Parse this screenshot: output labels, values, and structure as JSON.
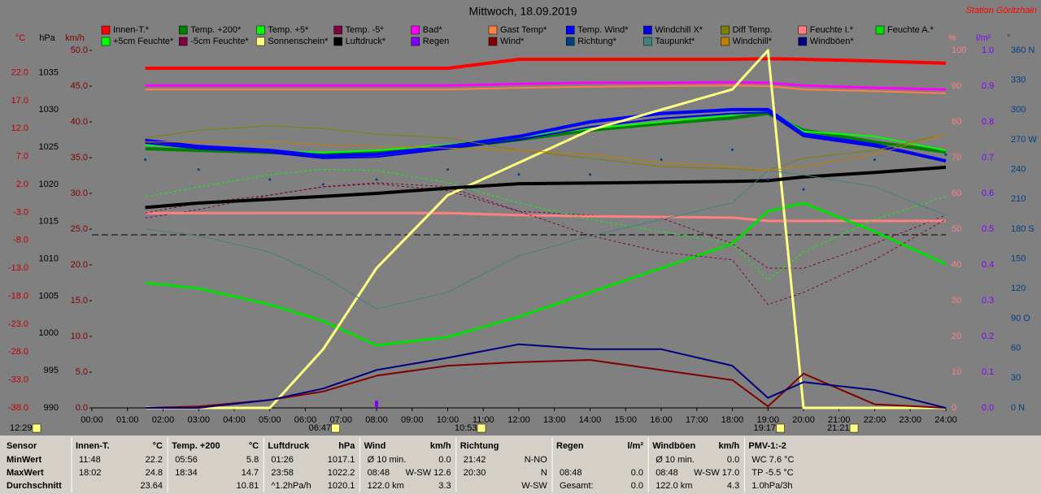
{
  "chart_data": {
    "type": "line",
    "title": "Mittwoch, 18.09.2019",
    "station": "Station Göritzhain",
    "x": [
      1.5,
      3,
      5,
      6.5,
      8,
      10,
      12,
      14,
      16,
      18,
      19,
      20,
      22,
      24
    ],
    "xlim": [
      0,
      24
    ],
    "xticks": [
      {
        "value": 0,
        "label": "00:00"
      },
      {
        "value": 1,
        "label": "01:00"
      },
      {
        "value": 2,
        "label": "02:00"
      },
      {
        "value": 3,
        "label": "03:00"
      },
      {
        "value": 4,
        "label": "04:00"
      },
      {
        "value": 5,
        "label": "05:00"
      },
      {
        "value": 6,
        "label": "06:00"
      },
      {
        "value": 7,
        "label": "07:00"
      },
      {
        "value": 8,
        "label": "08:00"
      },
      {
        "value": 9,
        "label": "09:00"
      },
      {
        "value": 10,
        "label": "10:00"
      },
      {
        "value": 11,
        "label": "11:00"
      },
      {
        "value": 12,
        "label": "12:00"
      },
      {
        "value": 13,
        "label": "13:00"
      },
      {
        "value": 14,
        "label": "14:00"
      },
      {
        "value": 15,
        "label": "15:00"
      },
      {
        "value": 16,
        "label": "16:00"
      },
      {
        "value": 17,
        "label": "17:00"
      },
      {
        "value": 18,
        "label": "18:00"
      },
      {
        "value": 19,
        "label": "19:00"
      },
      {
        "value": 20,
        "label": "20:00"
      },
      {
        "value": 21,
        "label": "21:00"
      },
      {
        "value": 22,
        "label": "22:00"
      },
      {
        "value": 23,
        "label": "23:00"
      },
      {
        "value": 24,
        "label": "24:00"
      }
    ],
    "ylabel": "km/h",
    "ylim": [
      0,
      50
    ],
    "yticks": [
      {
        "value": 0,
        "label": "0.0"
      },
      {
        "value": 5,
        "label": "5.0"
      },
      {
        "value": 10,
        "label": "10.0"
      },
      {
        "value": 15,
        "label": "15.0"
      },
      {
        "value": 20,
        "label": "20.0"
      },
      {
        "value": 25,
        "label": "25.0"
      },
      {
        "value": 30,
        "label": "30.0"
      },
      {
        "value": 35,
        "label": "35.0"
      },
      {
        "value": 40,
        "label": "40.0"
      },
      {
        "value": 45,
        "label": "45.0"
      },
      {
        "value": 50,
        "label": "50.0"
      }
    ],
    "y2label": "°C",
    "y2lim": [
      -38,
      26
    ],
    "y2ticks": [
      {
        "value": 22,
        "label": "22.0"
      },
      {
        "value": 17,
        "label": "17.0"
      },
      {
        "value": 12,
        "label": "12.0"
      },
      {
        "value": 7,
        "label": "7.0"
      },
      {
        "value": 2,
        "label": "2.0"
      },
      {
        "value": -3,
        "label": "-3.0"
      },
      {
        "value": -8,
        "label": "-8.0"
      },
      {
        "value": -13,
        "label": "-13.0"
      },
      {
        "value": -18,
        "label": "-18.0"
      },
      {
        "value": -23,
        "label": "-23.0"
      },
      {
        "value": -28,
        "label": "-28.0"
      },
      {
        "value": -33,
        "label": "-33.0"
      },
      {
        "value": -38,
        "label": "-38.0"
      }
    ],
    "y3label": "hPa",
    "y3lim": [
      990,
      1038
    ],
    "y3ticks": [
      1035,
      1030,
      1025,
      1020,
      1015,
      1010,
      1005,
      1000,
      995,
      990
    ],
    "y4label": "%",
    "y4lim": [
      0,
      100
    ],
    "y4ticks": [
      100,
      90,
      80,
      70,
      60,
      50,
      40,
      30,
      20,
      10,
      0
    ],
    "y5label": "l/m²",
    "y5lim": [
      0,
      1
    ],
    "y5ticks": [
      {
        "value": 1,
        "label": "1.0"
      },
      0.9,
      0.8,
      0.7,
      0.6,
      0.5,
      0.4,
      0.3,
      0.2,
      0.1,
      {
        "value": 0,
        "label": "0.0"
      }
    ],
    "y6label": "°",
    "y6lim": [
      0,
      360
    ],
    "y6ticks": [
      {
        "value": 360,
        "label": "360 N"
      },
      330,
      300,
      {
        "value": 270,
        "label": "270 W"
      },
      240,
      210,
      {
        "value": 180,
        "label": "180 S"
      },
      150,
      120,
      {
        "value": 90,
        "label": "90 O"
      },
      60,
      30,
      {
        "value": 0,
        "label": "0 N"
      }
    ],
    "axis_colors": {
      "y": "#800000",
      "y2": "#c00000",
      "y3": "#000000",
      "y4": "#ff8080",
      "y5": "#8000ff",
      "y6": "#004080"
    },
    "series": [
      {
        "name": "Innen-T.*",
        "color": "#ff0000",
        "axis": "y2",
        "width": 4,
        "values": [
          22.8,
          22.8,
          22.8,
          22.8,
          22.8,
          22.8,
          24.4,
          24.4,
          24.4,
          24.4,
          24.5,
          24.4,
          24.1,
          23.7
        ]
      },
      {
        "name": "Temp. +200*",
        "color": "#008000",
        "axis": "y2",
        "width": 4,
        "values": [
          8.4,
          8.1,
          7.7,
          7.4,
          7.7,
          8.5,
          10.0,
          11.7,
          12.9,
          13.9,
          14.7,
          11.7,
          9.6,
          7.8
        ]
      },
      {
        "name": "Temp. +5*",
        "color": "#00ff00",
        "axis": "y2",
        "width": 2,
        "values": [
          9.1,
          8.5,
          8.0,
          7.7,
          8.1,
          9.1,
          10.6,
          12.0,
          13.2,
          14.4,
          15.4,
          11.5,
          10.6,
          8.1
        ]
      },
      {
        "name": "Temp. -5*",
        "color": "#800040",
        "axis": "y2",
        "width": 1,
        "dash": true,
        "values": [
          -4.0,
          -2.5,
          0.1,
          1.6,
          2.3,
          1.6,
          -2.8,
          -3.5,
          -4.0,
          -8.6,
          -13.0,
          -13.0,
          -8.6,
          -3.5
        ]
      },
      {
        "name": "Bad*",
        "color": "#ff00ff",
        "axis": "y2",
        "width": 3,
        "values": [
          19.7,
          19.7,
          19.7,
          19.7,
          19.7,
          19.7,
          20.0,
          20.2,
          20.2,
          20.3,
          20.2,
          19.7,
          19.3,
          19.0
        ]
      },
      {
        "name": "Gast Temp*",
        "color": "#ff8040",
        "axis": "y2",
        "width": 2,
        "values": [
          19.0,
          19.0,
          19.0,
          19.0,
          19.0,
          19.0,
          19.3,
          19.5,
          19.6,
          19.7,
          19.6,
          19.0,
          18.7,
          18.3
        ]
      },
      {
        "name": "Temp. Wind*",
        "color": "#0000ff",
        "axis": "y2",
        "width": 4,
        "values": [
          9.9,
          8.8,
          8.1,
          7.1,
          7.4,
          8.8,
          10.6,
          13.2,
          14.7,
          15.4,
          15.4,
          11.0,
          9.1,
          6.2
        ]
      },
      {
        "name": "Windchill X*",
        "color": "#0000e0",
        "axis": "y2",
        "width": 2,
        "values": [
          9.4,
          8.4,
          7.7,
          6.7,
          6.9,
          8.4,
          10.0,
          12.3,
          13.8,
          14.7,
          14.9,
          10.6,
          8.8,
          6.2
        ]
      },
      {
        "name": "Diff Temp.",
        "color": "#808000",
        "axis": "y2",
        "width": 1,
        "values": [
          10.3,
          11.7,
          12.5,
          12.0,
          11.0,
          10.3,
          8.1,
          6.7,
          5.2,
          4.8,
          4.5,
          6.7,
          8.1,
          11.0
        ]
      },
      {
        "name": "Feuchte I.*",
        "color": "#ff8080",
        "axis": "y4",
        "width": 3,
        "values": [
          54.5,
          54.5,
          54.5,
          54.5,
          54.5,
          54.5,
          53.9,
          53.6,
          53.4,
          53.2,
          52.3,
          52.3,
          52.3,
          52.3
        ]
      },
      {
        "name": "Feuchte A.*",
        "color": "#00e000",
        "axis": "y4",
        "width": 3,
        "values": [
          35.0,
          33.4,
          28.9,
          24.3,
          17.5,
          19.8,
          25.5,
          32.3,
          39.1,
          45.9,
          55.0,
          57.3,
          49.3,
          40.2
        ]
      },
      {
        "name": "+5cm Feuchte*",
        "color": "#00ff00",
        "axis": "y4",
        "width": 1,
        "dash": true,
        "values": [
          59.1,
          61.8,
          65.2,
          66.8,
          66.4,
          63.0,
          57.3,
          52.7,
          49.3,
          45.9,
          35.7,
          43.6,
          52.7,
          59.1
        ]
      },
      {
        "name": "-5cm Feuchte*",
        "color": "#800040",
        "axis": "y4",
        "width": 1,
        "dash": true,
        "values": [
          54.5,
          57.3,
          59.5,
          61.8,
          62.7,
          60.7,
          55.0,
          48.2,
          43.6,
          41.4,
          28.9,
          32.3,
          41.4,
          52.7
        ]
      },
      {
        "name": "Sonnenschein*",
        "color": "#ffff80",
        "axis": "y4",
        "width": 3,
        "values": [
          0,
          0,
          0,
          16.4,
          39.1,
          59.5,
          68.6,
          77.7,
          83.4,
          89.1,
          100,
          0,
          0,
          0
        ]
      },
      {
        "name": "Luftdruck*",
        "color": "#000000",
        "axis": "y3",
        "width": 4,
        "values": [
          1016.9,
          1017.5,
          1018.0,
          1018.4,
          1018.8,
          1019.5,
          1020.1,
          1020.2,
          1020.3,
          1020.4,
          1020.5,
          1021.0,
          1021.6,
          1022.3
        ]
      },
      {
        "name": "Regen",
        "color": "#8000ff",
        "axis": "y5",
        "style": "bars",
        "values": [
          0,
          0,
          0,
          0,
          0.02,
          0,
          0,
          0,
          0,
          0,
          0,
          0,
          0,
          0
        ]
      },
      {
        "name": "Wind*",
        "color": "#800000",
        "axis": "y",
        "width": 2,
        "values": [
          0,
          0.2,
          1.1,
          2.3,
          4.5,
          5.9,
          6.4,
          6.7,
          5.3,
          3.9,
          0.2,
          4.8,
          0.5,
          0
        ]
      },
      {
        "name": "Richtung*",
        "color": "#004080",
        "axis": "y6",
        "style": "dots",
        "values": [
          250,
          240,
          230,
          225,
          230,
          240,
          235,
          235,
          250,
          260,
          230,
          220,
          250,
          255
        ]
      },
      {
        "name": "Taupunkt*",
        "color": "#408080",
        "axis": "y2",
        "width": 1,
        "values": [
          -6.0,
          -7.2,
          -10.1,
          -14.4,
          -20.3,
          -17.3,
          -10.8,
          -7.2,
          -4.3,
          -1.3,
          4.5,
          3.7,
          1.6,
          -3.5
        ]
      },
      {
        "name": "Windchill*",
        "color": "#c08000",
        "axis": "y2",
        "width": 1,
        "values": [
          9.6,
          9.6,
          9.6,
          9.1,
          8.8,
          8.5,
          8.1,
          7.4,
          5.9,
          5.2,
          4.5,
          5.2,
          7.4,
          11.0
        ]
      },
      {
        "name": "Windböen*",
        "color": "#000080",
        "axis": "y",
        "width": 2,
        "values": [
          0,
          0,
          1.1,
          2.7,
          5.3,
          7.0,
          8.9,
          8.2,
          8.2,
          5.9,
          1.4,
          3.6,
          2.5,
          0
        ]
      }
    ],
    "markers": [
      {
        "label": "12:29",
        "value": 0
      },
      {
        "label": "06:47",
        "value": 6.78
      },
      {
        "label": "10:53",
        "value": 10.88
      },
      {
        "label": "19:17",
        "value": 19.28
      },
      {
        "label": "21:21",
        "value": 21.35
      }
    ]
  },
  "table": {
    "row_labels": [
      "Sensor",
      "MinWert",
      "MaxWert",
      "Durchschnitt"
    ],
    "groups": [
      {
        "title": "Innen-T.",
        "unit": "°C",
        "rows": [
          [
            "11:48",
            "22.2"
          ],
          [
            "18:02",
            "24.8"
          ],
          [
            "",
            "23.64"
          ]
        ]
      },
      {
        "title": "Temp. +200",
        "unit": "°C",
        "rows": [
          [
            "05:56",
            "5.8"
          ],
          [
            "18:34",
            "14.7"
          ],
          [
            "",
            "10.81"
          ]
        ]
      },
      {
        "title": "Luftdruck",
        "unit": "hPa",
        "rows": [
          [
            "01:26",
            "1017.1"
          ],
          [
            "23:58",
            "1022.2"
          ],
          [
            "^1.2hPa/h",
            "1020.1"
          ]
        ]
      },
      {
        "title": "Wind",
        "unit": "km/h",
        "rows": [
          [
            "Ø 10 min.",
            "0.0"
          ],
          [
            "08:48",
            "W-SW 12.6"
          ],
          [
            "122.0 km",
            "3.3"
          ]
        ]
      },
      {
        "title": "Richtung",
        "unit": "",
        "rows": [
          [
            "21:42",
            "N-NO"
          ],
          [
            "20:30",
            "N"
          ],
          [
            "",
            "W-SW"
          ]
        ]
      },
      {
        "title": "Regen",
        "unit": "l/m²",
        "rows": [
          [
            "",
            ""
          ],
          [
            "08:48",
            "0.0"
          ],
          [
            "Gesamt:",
            "0.0"
          ]
        ]
      },
      {
        "title": "Windböen",
        "unit": "km/h",
        "rows": [
          [
            "Ø 10 min.",
            "0.0"
          ],
          [
            "08:48",
            "W-SW 17.0"
          ],
          [
            "122.0 km",
            "4.3"
          ]
        ]
      },
      {
        "title": "PMV-1:-2",
        "unit": "",
        "rows": [
          [
            "WC 7.6 °C",
            ""
          ],
          [
            "TP -5.5 °C",
            ""
          ],
          [
            "1.0hPa/3h",
            ""
          ]
        ]
      }
    ]
  }
}
